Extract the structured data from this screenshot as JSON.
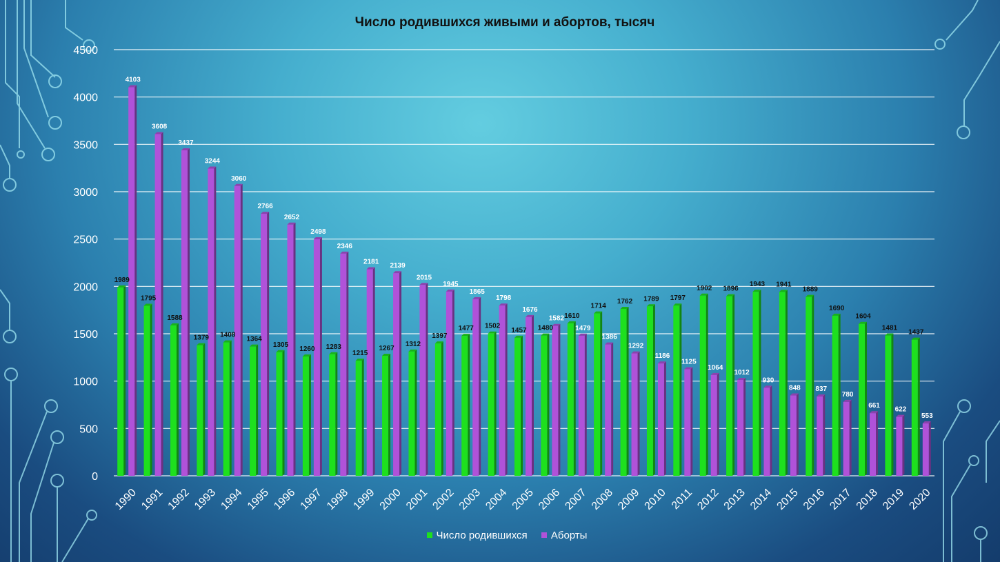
{
  "chart_data": {
    "type": "bar",
    "title": "Число родившихся живыми и абортов, тысяч",
    "categories": [
      "1990",
      "1991",
      "1992",
      "1993",
      "1994",
      "1995",
      "1996",
      "1997",
      "1998",
      "1999",
      "2000",
      "2001",
      "2002",
      "2003",
      "2004",
      "2005",
      "2006",
      "2007",
      "2008",
      "2009",
      "2010",
      "2011",
      "2012",
      "2013",
      "2014",
      "2015",
      "2016",
      "2017",
      "2018",
      "2019",
      "2020"
    ],
    "series": [
      {
        "name": "Число родившихся",
        "color": "#1ee01e",
        "values": [
          1989,
          1795,
          1588,
          1379,
          1408,
          1364,
          1305,
          1260,
          1283,
          1215,
          1267,
          1312,
          1397,
          1477,
          1502,
          1457,
          1480,
          1610,
          1714,
          1762,
          1789,
          1797,
          1902,
          1896,
          1943,
          1941,
          1889,
          1690,
          1604,
          1481,
          1437
        ]
      },
      {
        "name": "Аборты",
        "color": "#b052d9",
        "values": [
          4103,
          3608,
          3437,
          3244,
          3060,
          2766,
          2652,
          2498,
          2346,
          2181,
          2139,
          2015,
          1945,
          1865,
          1798,
          1676,
          1582,
          1479,
          1386,
          1292,
          1186,
          1125,
          1064,
          1012,
          930,
          848,
          837,
          780,
          661,
          622,
          553
        ]
      }
    ],
    "ylim": [
      0,
      4500
    ],
    "yticks": [
      0,
      500,
      1000,
      1500,
      2000,
      2500,
      3000,
      3500,
      4000,
      4500
    ],
    "grid": true,
    "legend_position": "bottom"
  }
}
